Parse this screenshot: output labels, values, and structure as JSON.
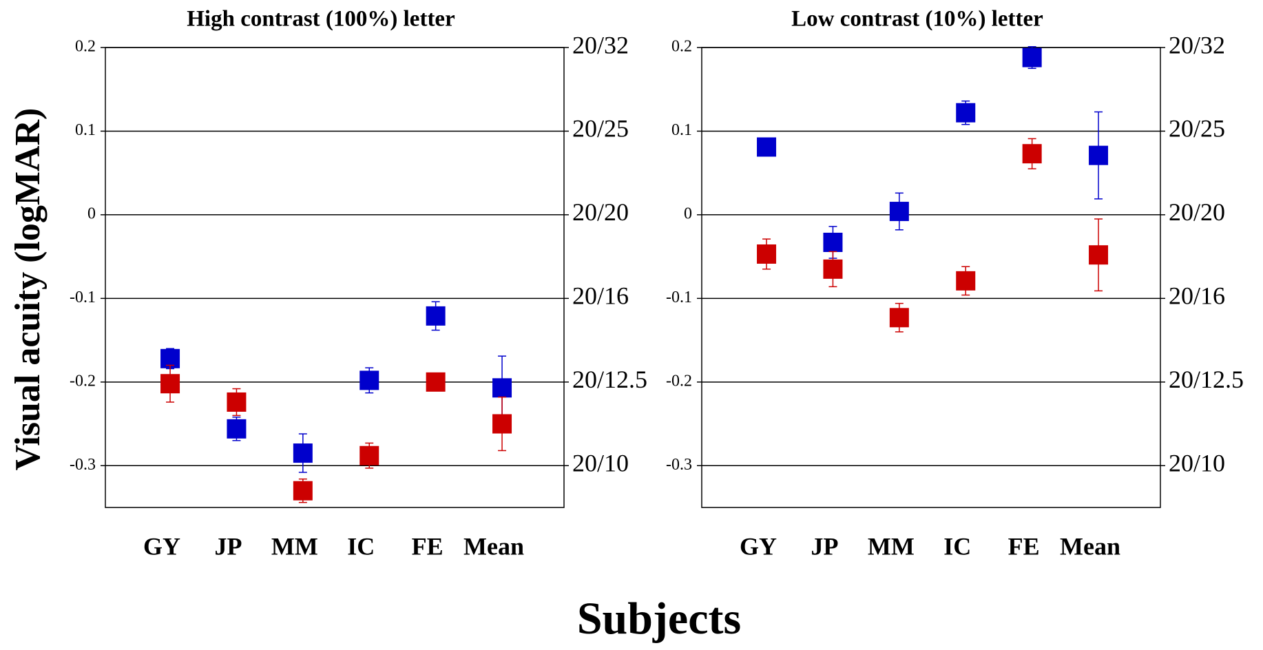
{
  "y_label": "Visual acuity (logMAR)",
  "x_label": "Subjects",
  "chart_data": [
    {
      "type": "errorpoint",
      "title": "High contrast (100%) letter",
      "categories": [
        "GY",
        "JP",
        "MM",
        "IC",
        "FE",
        "Mean"
      ],
      "ylim": [
        -0.35,
        0.2
      ],
      "yticks": [
        0.2,
        0.1,
        0,
        -0.1,
        -0.2,
        -0.3
      ],
      "y2lim": [
        -0.35,
        0.2
      ],
      "y2ticks": [
        {
          "value": 0.2,
          "label": "20/32"
        },
        {
          "value": 0.1,
          "label": "20/25"
        },
        {
          "value": 0,
          "label": "20/20"
        },
        {
          "value": -0.1,
          "label": "20/16"
        },
        {
          "value": -0.2,
          "label": "20/12.5"
        },
        {
          "value": -0.3,
          "label": "20/10"
        }
      ],
      "grid": true,
      "series": [
        {
          "color": "#0000cc",
          "values": [
            -0.172,
            -0.256,
            -0.285,
            -0.198,
            -0.121,
            -0.207
          ],
          "errors": [
            0.012,
            0.014,
            0.023,
            0.015,
            0.017,
            0.038
          ]
        },
        {
          "color": "#cc0000",
          "values": [
            -0.202,
            -0.224,
            -0.33,
            -0.288,
            -0.2,
            -0.25
          ],
          "errors": [
            0.022,
            0.016,
            0.014,
            0.015,
            0.008,
            0.032
          ]
        }
      ]
    },
    {
      "type": "errorpoint",
      "title": "Low contrast (10%) letter",
      "categories": [
        "GY",
        "JP",
        "MM",
        "IC",
        "FE",
        "Mean"
      ],
      "ylim": [
        -0.35,
        0.2
      ],
      "yticks": [
        0.2,
        0.1,
        0,
        -0.1,
        -0.2,
        -0.3
      ],
      "y2lim": [
        -0.35,
        0.2
      ],
      "y2ticks": [
        {
          "value": 0.2,
          "label": "20/32"
        },
        {
          "value": 0.1,
          "label": "20/25"
        },
        {
          "value": 0,
          "label": "20/20"
        },
        {
          "value": -0.1,
          "label": "20/16"
        },
        {
          "value": -0.2,
          "label": "20/12.5"
        },
        {
          "value": -0.3,
          "label": "20/10"
        }
      ],
      "grid": true,
      "series": [
        {
          "color": "#0000cc",
          "values": [
            0.081,
            -0.033,
            0.004,
            0.122,
            0.188,
            0.071
          ],
          "errors": [
            0.008,
            0.019,
            0.022,
            0.014,
            0.013,
            0.052
          ]
        },
        {
          "color": "#cc0000",
          "values": [
            -0.047,
            -0.065,
            -0.123,
            -0.079,
            0.073,
            -0.048
          ],
          "errors": [
            0.018,
            0.021,
            0.017,
            0.017,
            0.018,
            0.043
          ]
        }
      ]
    }
  ]
}
